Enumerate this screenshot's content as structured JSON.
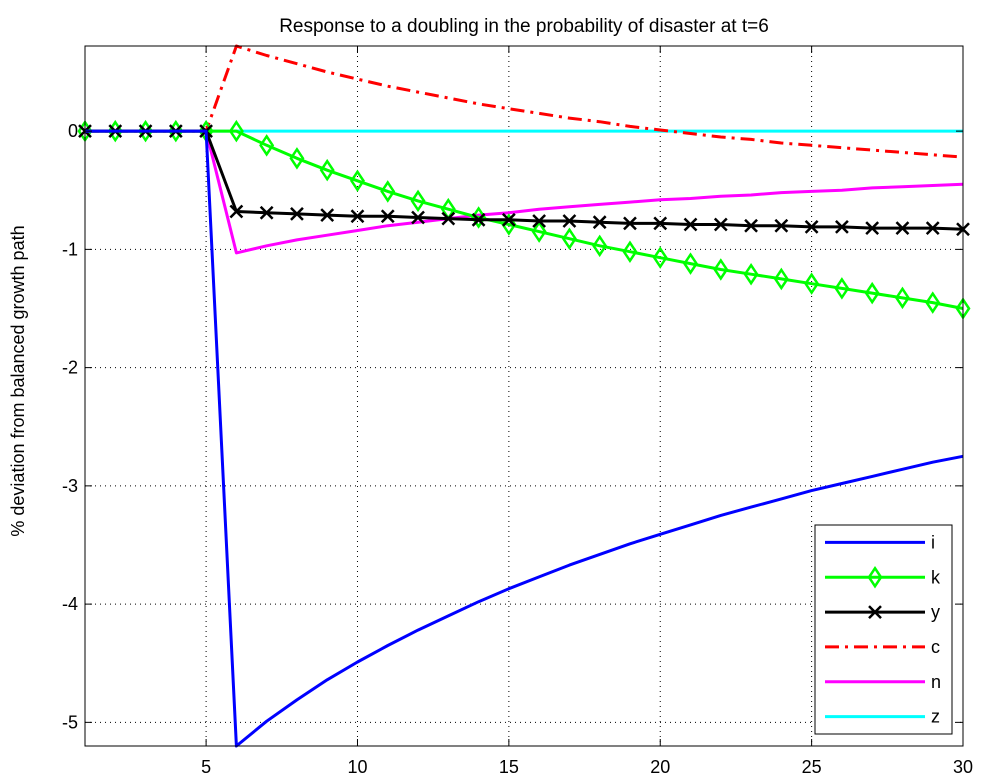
{
  "chart_data": {
    "type": "line",
    "title": "Response to a doubling in the probability of disaster at t=6",
    "xlabel": "",
    "ylabel": "% deviation from balanced growth path",
    "xlim": [
      1,
      30
    ],
    "ylim": [
      -5.2,
      0.72
    ],
    "x_ticks": [
      5,
      10,
      15,
      20,
      25,
      30
    ],
    "y_ticks": [
      0,
      -1,
      -2,
      -3,
      -4,
      -5
    ],
    "grid": true,
    "legend_position": "bottom-right",
    "x": [
      1,
      2,
      3,
      4,
      5,
      6,
      7,
      8,
      9,
      10,
      11,
      12,
      13,
      14,
      15,
      16,
      17,
      18,
      19,
      20,
      21,
      22,
      23,
      24,
      25,
      26,
      27,
      28,
      29,
      30
    ],
    "series": [
      {
        "name": "i",
        "color": "#0000ff",
        "style": "solid",
        "marker": "none",
        "values": [
          0,
          0,
          0,
          0,
          0,
          -5.2,
          -4.99,
          -4.81,
          -4.64,
          -4.49,
          -4.35,
          -4.22,
          -4.1,
          -3.98,
          -3.87,
          -3.77,
          -3.67,
          -3.58,
          -3.49,
          -3.41,
          -3.33,
          -3.25,
          -3.18,
          -3.11,
          -3.04,
          -2.98,
          -2.92,
          -2.86,
          -2.8,
          -2.75
        ]
      },
      {
        "name": "k",
        "color": "#00ff00",
        "style": "solid",
        "marker": "diamond",
        "values": [
          0,
          0,
          0,
          0,
          0,
          0,
          -0.12,
          -0.23,
          -0.33,
          -0.42,
          -0.51,
          -0.59,
          -0.66,
          -0.73,
          -0.79,
          -0.85,
          -0.91,
          -0.97,
          -1.02,
          -1.07,
          -1.12,
          -1.17,
          -1.21,
          -1.25,
          -1.29,
          -1.33,
          -1.37,
          -1.41,
          -1.45,
          -1.5
        ]
      },
      {
        "name": "y",
        "color": "#000000",
        "style": "solid",
        "marker": "x",
        "values": [
          0,
          0,
          0,
          0,
          0,
          -0.68,
          -0.69,
          -0.7,
          -0.71,
          -0.72,
          -0.72,
          -0.73,
          -0.74,
          -0.75,
          -0.75,
          -0.76,
          -0.76,
          -0.77,
          -0.78,
          -0.78,
          -0.79,
          -0.79,
          -0.8,
          -0.8,
          -0.81,
          -0.81,
          -0.82,
          -0.82,
          -0.82,
          -0.83
        ]
      },
      {
        "name": "c",
        "color": "#ff0000",
        "style": "dashdot",
        "marker": "none",
        "values": [
          0,
          0,
          0,
          0,
          0,
          0.72,
          0.64,
          0.57,
          0.5,
          0.44,
          0.38,
          0.33,
          0.28,
          0.23,
          0.19,
          0.15,
          0.11,
          0.08,
          0.04,
          0.01,
          -0.02,
          -0.05,
          -0.07,
          -0.1,
          -0.12,
          -0.14,
          -0.16,
          -0.18,
          -0.2,
          -0.22
        ]
      },
      {
        "name": "n",
        "color": "#ff00ff",
        "style": "solid",
        "marker": "none",
        "values": [
          0,
          0,
          0,
          0,
          0,
          -1.03,
          -0.97,
          -0.92,
          -0.88,
          -0.84,
          -0.8,
          -0.77,
          -0.74,
          -0.71,
          -0.69,
          -0.66,
          -0.64,
          -0.62,
          -0.6,
          -0.58,
          -0.57,
          -0.55,
          -0.54,
          -0.52,
          -0.51,
          -0.5,
          -0.48,
          -0.47,
          -0.46,
          -0.45
        ]
      },
      {
        "name": "z",
        "color": "#00ffff",
        "style": "solid",
        "marker": "none",
        "values": [
          0,
          0,
          0,
          0,
          0,
          0,
          0,
          0,
          0,
          0,
          0,
          0,
          0,
          0,
          0,
          0,
          0,
          0,
          0,
          0,
          0,
          0,
          0,
          0,
          0,
          0,
          0,
          0,
          0,
          0
        ]
      }
    ]
  }
}
